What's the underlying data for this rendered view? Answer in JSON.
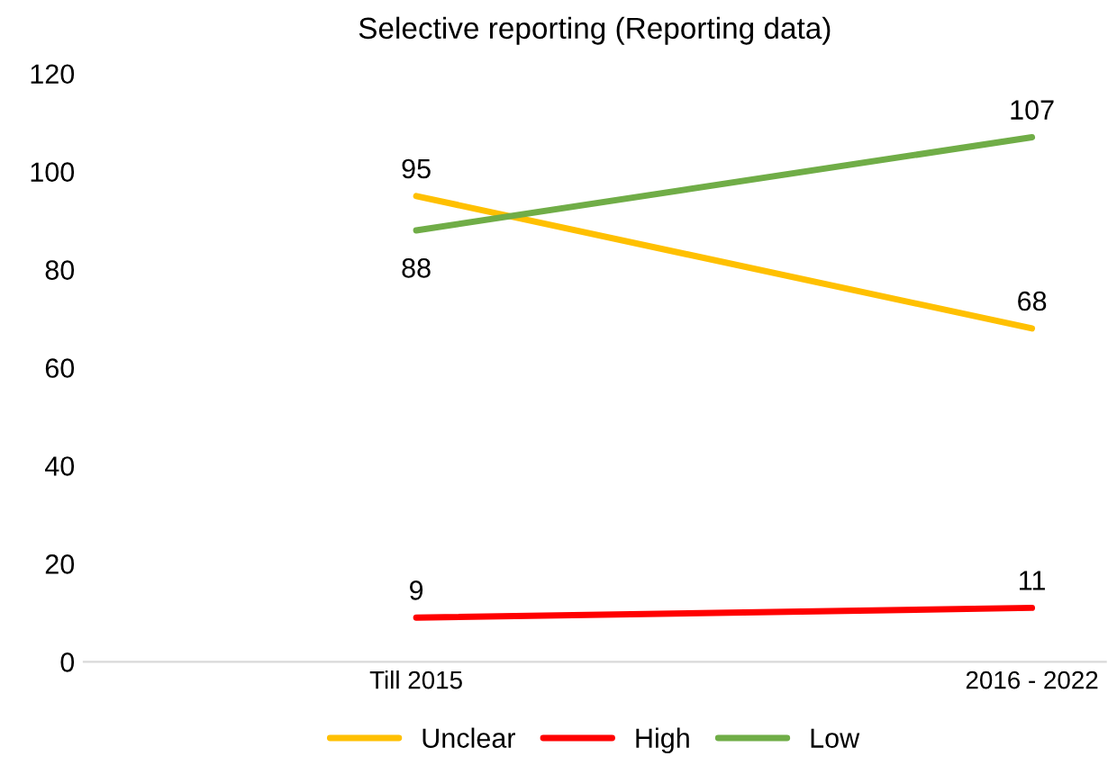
{
  "chart_data": {
    "type": "line",
    "title": "Selective reporting (Reporting data)",
    "categories": [
      "Till 2015",
      "2016 - 2022"
    ],
    "series": [
      {
        "name": "Unclear",
        "color": "#ffc000",
        "values": [
          95,
          68
        ]
      },
      {
        "name": "High",
        "color": "#ff0000",
        "values": [
          9,
          11
        ]
      },
      {
        "name": "Low",
        "color": "#70ad47",
        "values": [
          88,
          107
        ]
      }
    ],
    "ylim": [
      0,
      120
    ],
    "yticks": [
      0,
      20,
      40,
      60,
      80,
      100,
      120
    ],
    "grid": false,
    "legend": "bottom",
    "data_labels": true,
    "marker": "none",
    "line_style": "solid"
  }
}
